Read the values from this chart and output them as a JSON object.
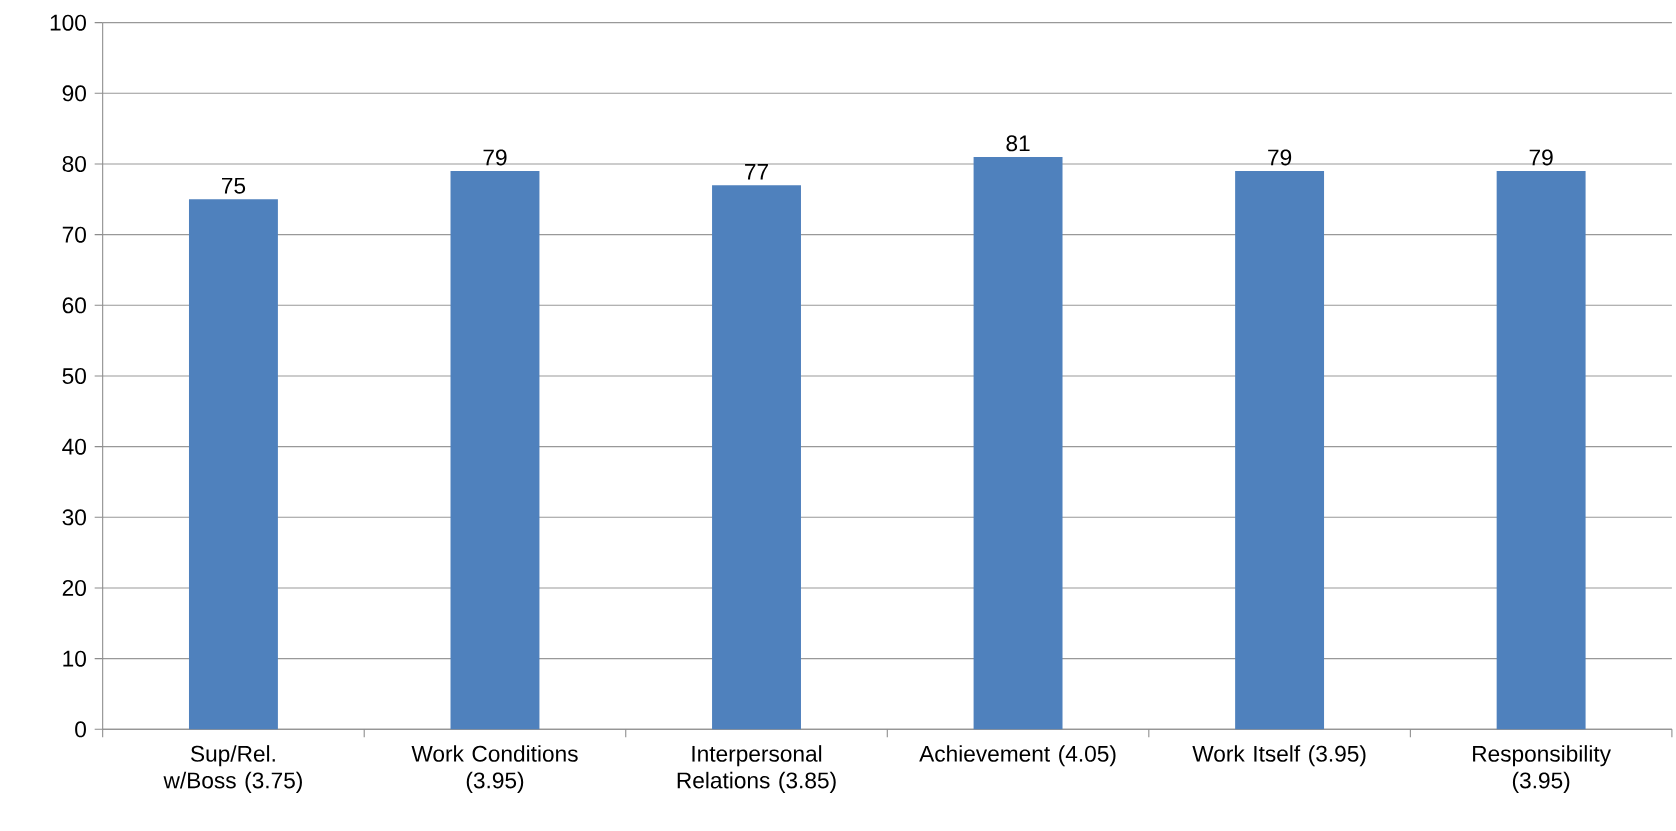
{
  "chart_data": {
    "type": "bar",
    "categories": [
      "Sup/Rel. w/Boss (3.75)",
      "Work Conditions (3.95)",
      "Interpersonal Relations (3.85)",
      "Achievement (4.05)",
      "Work Itself (3.95)",
      "Responsibility (3.95)"
    ],
    "values": [
      75,
      79,
      77,
      81,
      79,
      79
    ],
    "color": "#4f81bd",
    "ylim": [
      0,
      100
    ],
    "yticks": [
      0,
      10,
      20,
      30,
      40,
      50,
      60,
      70,
      80,
      90,
      100
    ],
    "grid": "y",
    "data_labels": true
  }
}
